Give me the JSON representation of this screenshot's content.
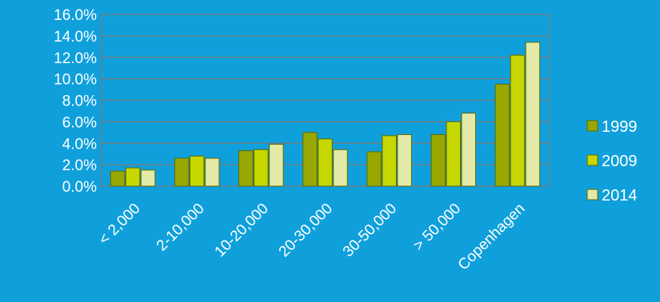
{
  "chart_data": {
    "type": "bar",
    "categories": [
      "< 2,000",
      "2-10,000",
      "10-20,000",
      "20-30,000",
      "30-50,000",
      "> 50,000",
      "Copenhagen"
    ],
    "series": [
      {
        "name": "1999",
        "values": [
          1.4,
          2.6,
          3.3,
          5.0,
          3.2,
          4.8,
          9.5
        ]
      },
      {
        "name": "2009",
        "values": [
          1.7,
          2.8,
          3.4,
          4.4,
          4.7,
          6.0,
          12.2
        ]
      },
      {
        "name": "2014",
        "values": [
          1.5,
          2.6,
          3.9,
          3.4,
          4.8,
          6.8,
          13.4
        ]
      }
    ],
    "yticks": [
      "0.0%",
      "2.0%",
      "4.0%",
      "6.0%",
      "8.0%",
      "10.0%",
      "12.0%",
      "14.0%",
      "16.0%"
    ],
    "ylim": [
      0,
      16
    ],
    "grid": true,
    "legend_position": "right",
    "title": "",
    "xlabel": "",
    "ylabel": "",
    "colors": {
      "background": "#0fa0dc",
      "grid": "#7a7a7a",
      "series": [
        "#98a800",
        "#c6d800",
        "#e3e9a6"
      ],
      "bar_border": "#5c6a00"
    }
  }
}
